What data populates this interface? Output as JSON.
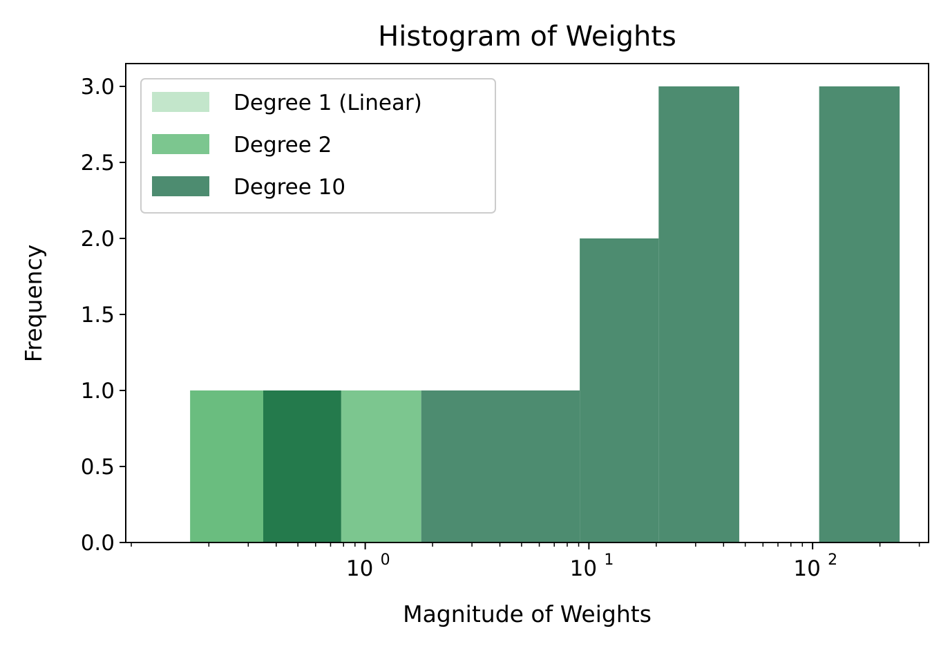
{
  "chart_data": {
    "type": "histogram",
    "title": "Histogram of Weights",
    "xlabel": "Magnitude of Weights",
    "ylabel": "Frequency",
    "x_scale": "log",
    "xlim": [
      0.085,
      330
    ],
    "ylim": [
      0,
      3.15
    ],
    "y_ticks": [
      "0.0",
      "0.5",
      "1.0",
      "1.5",
      "2.0",
      "2.5",
      "3.0"
    ],
    "y_tick_values": [
      0,
      0.5,
      1.0,
      1.5,
      2.0,
      2.5,
      3.0
    ],
    "x_ticks": [
      {
        "value": 1,
        "base": "10",
        "exp": "0"
      },
      {
        "value": 10,
        "base": "10",
        "exp": "1"
      },
      {
        "value": 100,
        "base": "10",
        "exp": "2"
      }
    ],
    "legend_position": "upper-left",
    "grid": false,
    "series": [
      {
        "name": "Degree 1 (Linear)",
        "color": "#c3e6cb",
        "bins": [
          {
            "x0": 0.165,
            "x1": 0.35,
            "count": 1
          },
          {
            "x0": 0.35,
            "x1": 0.78,
            "count": 1
          }
        ]
      },
      {
        "name": "Degree 2",
        "color": "#7cc68f",
        "bins": [
          {
            "x0": 0.165,
            "x1": 0.35,
            "count": 1
          },
          {
            "x0": 0.78,
            "x1": 1.78,
            "count": 1
          }
        ]
      },
      {
        "name": "Degree 10",
        "color": "#4d8c70",
        "bins": [
          {
            "x0": 0.35,
            "x1": 0.78,
            "count": 1
          },
          {
            "x0": 1.78,
            "x1": 9.1,
            "count": 1
          },
          {
            "x0": 9.1,
            "x1": 20.5,
            "count": 2
          },
          {
            "x0": 20.5,
            "x1": 47,
            "count": 3
          },
          {
            "x0": 107,
            "x1": 245,
            "count": 3
          }
        ]
      }
    ],
    "overlap_colors": {
      "deg1_deg2": "#6abd7f",
      "deg1_deg10": "#247a4c"
    }
  }
}
